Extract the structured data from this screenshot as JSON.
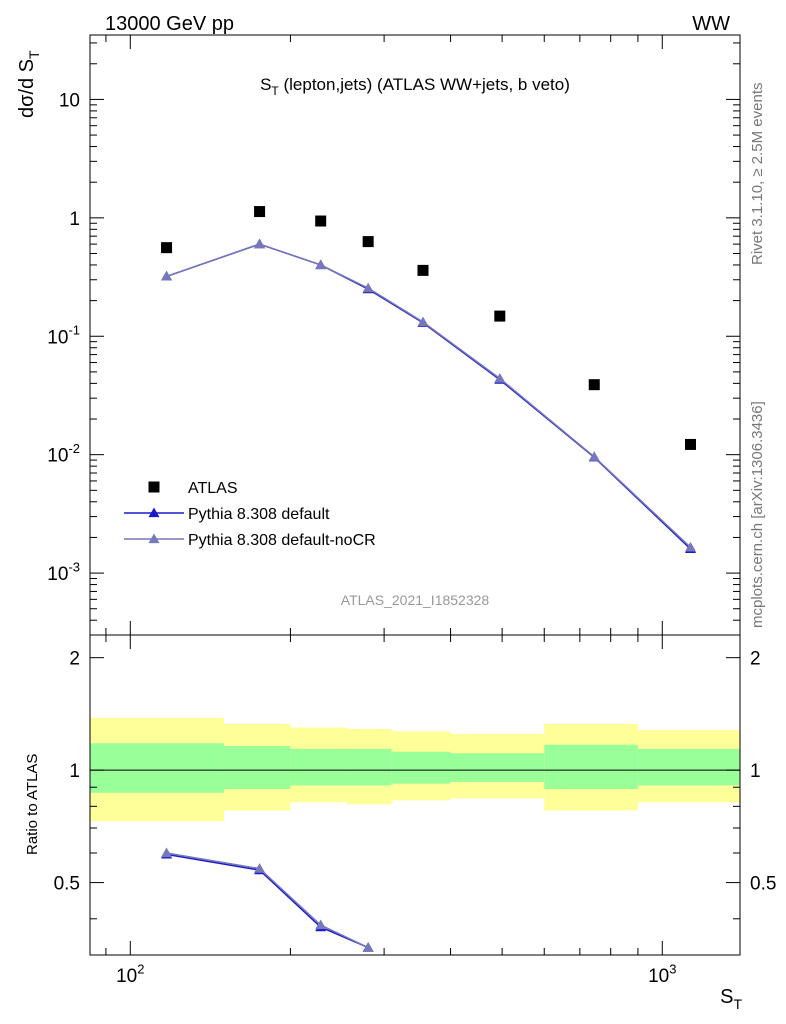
{
  "header": {
    "left": "13000 GeV pp",
    "right": "WW"
  },
  "chart_data": {
    "type": "line",
    "title": "S_T (lepton,jets) (ATLAS WW+jets, b veto)",
    "analysis_label": "ATLAS_2021_I1852328",
    "side_text_top": "Rivet 3.1.10, ≥ 2.5M events",
    "side_text_bottom": "mcplots.cern.ch [arXiv:1306.3436]",
    "xlabel": "S_T",
    "ylabel": "dσ/d S_T",
    "ratio_ylabel": "Ratio to ATLAS",
    "xscale": "log",
    "yscale": "log",
    "xlim": [
      84,
      1400
    ],
    "ylim": [
      0.0003,
      35
    ],
    "ratio_ylim": [
      0.32,
      2.3
    ],
    "x_tick_labels": [
      "10^2",
      "10^3"
    ],
    "y_tick_labels": [
      "10",
      "1",
      "10^-1",
      "10^-2",
      "10^-3"
    ],
    "ratio_tick_labels": [
      "0.5",
      "1",
      "2"
    ],
    "legend_position": "bottom-left",
    "series": [
      {
        "name": "ATLAS",
        "marker": "square",
        "color": "#000000",
        "x": [
          117,
          175,
          228,
          280,
          355,
          495,
          745,
          1130
        ],
        "y": [
          0.56,
          1.13,
          0.94,
          0.63,
          0.36,
          0.148,
          0.039,
          0.0122
        ]
      },
      {
        "name": "Pythia 8.308 default",
        "marker": "triangle",
        "color": "#1a1acc",
        "x": [
          117,
          175,
          228,
          280,
          355,
          495,
          745,
          1130
        ],
        "y": [
          0.32,
          0.6,
          0.4,
          0.25,
          0.13,
          0.043,
          0.0095,
          0.0016
        ]
      },
      {
        "name": "Pythia 8.308 default-noCR",
        "marker": "triangle",
        "color": "#7777bb",
        "x": [
          117,
          175,
          228,
          280,
          355,
          495,
          745,
          1130
        ],
        "y": [
          0.32,
          0.6,
          0.4,
          0.255,
          0.132,
          0.044,
          0.0096,
          0.00165
        ]
      }
    ],
    "ratio": {
      "series": [
        {
          "name": "Pythia 8.308 default",
          "x": [
            117,
            175,
            228,
            280
          ],
          "y": [
            0.595,
            0.54,
            0.38,
            0.335
          ]
        },
        {
          "name": "Pythia 8.308 default-noCR",
          "x": [
            117,
            175,
            228,
            280
          ],
          "y": [
            0.6,
            0.545,
            0.385,
            0.335
          ]
        }
      ],
      "bins": [
        {
          "x0": 84,
          "x1": 150,
          "stat_lo": 0.87,
          "stat_hi": 1.18,
          "tot_lo": 0.73,
          "tot_hi": 1.38
        },
        {
          "x0": 150,
          "x1": 200,
          "stat_lo": 0.89,
          "stat_hi": 1.16,
          "tot_lo": 0.78,
          "tot_hi": 1.33
        },
        {
          "x0": 200,
          "x1": 255,
          "stat_lo": 0.91,
          "stat_hi": 1.14,
          "tot_lo": 0.82,
          "tot_hi": 1.3
        },
        {
          "x0": 255,
          "x1": 310,
          "stat_lo": 0.91,
          "stat_hi": 1.14,
          "tot_lo": 0.81,
          "tot_hi": 1.29
        },
        {
          "x0": 310,
          "x1": 400,
          "stat_lo": 0.92,
          "stat_hi": 1.12,
          "tot_lo": 0.83,
          "tot_hi": 1.27
        },
        {
          "x0": 400,
          "x1": 600,
          "stat_lo": 0.93,
          "stat_hi": 1.11,
          "tot_lo": 0.84,
          "tot_hi": 1.25
        },
        {
          "x0": 600,
          "x1": 900,
          "stat_lo": 0.89,
          "stat_hi": 1.17,
          "tot_lo": 0.78,
          "tot_hi": 1.33
        },
        {
          "x0": 900,
          "x1": 1400,
          "stat_lo": 0.91,
          "stat_hi": 1.14,
          "tot_lo": 0.82,
          "tot_hi": 1.28
        }
      ]
    }
  }
}
